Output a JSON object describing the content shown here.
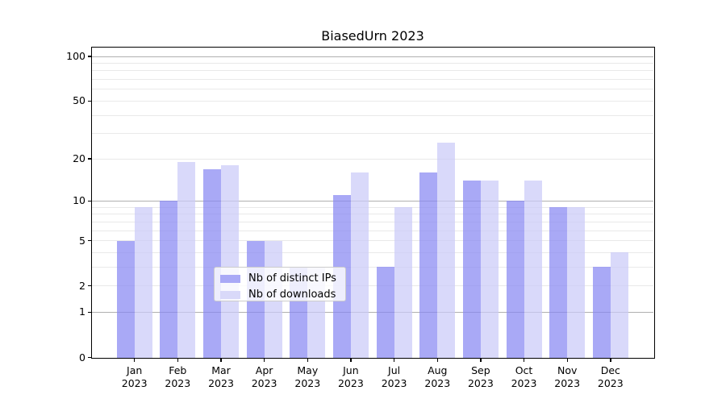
{
  "chart_data": {
    "type": "bar",
    "title": "BiasedUrn 2023",
    "categories": [
      "Jan",
      "Feb",
      "Mar",
      "Apr",
      "May",
      "Jun",
      "Jul",
      "Aug",
      "Sep",
      "Oct",
      "Nov",
      "Dec"
    ],
    "x_tick_year_line": "2023",
    "series": [
      {
        "name": "Nb of distinct IPs",
        "legend_swatch_color": "#a9a9f6",
        "bar_color": "rgba(136,136,242,0.72)",
        "values": [
          5,
          10,
          17,
          5,
          3,
          11,
          3,
          16,
          14,
          10,
          9,
          3
        ]
      },
      {
        "name": "Nb of downloads",
        "legend_swatch_color": "#d9d9f9",
        "bar_color": "rgba(202,202,248,0.72)",
        "values": [
          9,
          19,
          18,
          5,
          3,
          16,
          9,
          26,
          14,
          14,
          9,
          4
        ]
      }
    ],
    "y_axis": {
      "scale": "log1p",
      "tick_values": [
        0,
        1,
        2,
        5,
        10,
        20,
        50,
        100
      ],
      "minor_gridlines": [
        2,
        3,
        4,
        5,
        6,
        7,
        8,
        9,
        20,
        30,
        40,
        50,
        60,
        70,
        80,
        90
      ],
      "major_gridlines": [
        1,
        10,
        100
      ],
      "max_value": 100
    },
    "legend": {
      "position": "lower center"
    },
    "colors": {
      "minor_gridline": "#e9e9e9",
      "major_gridline": "#b0b0b0",
      "axis_frame": "#000000",
      "background": "#ffffff",
      "text": "#000000"
    }
  }
}
